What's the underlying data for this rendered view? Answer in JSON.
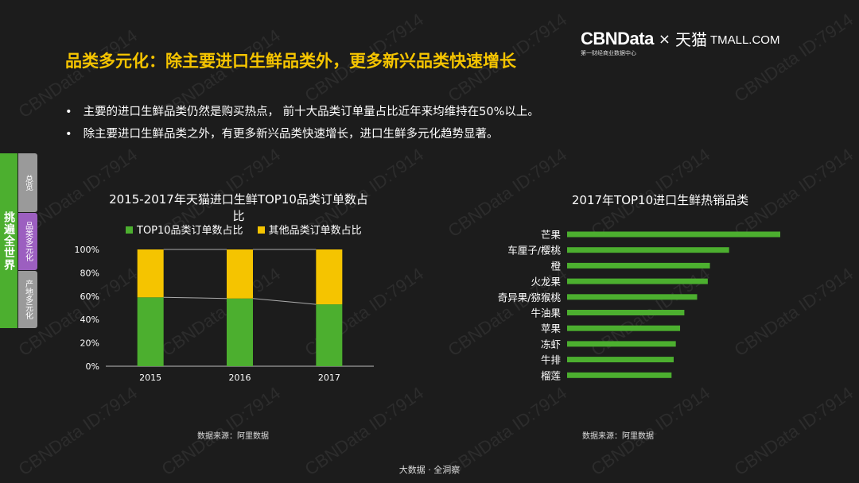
{
  "brand": {
    "main": "CBNData",
    "sub": "第一财经商业数据中心",
    "times": "×",
    "partner_cn": "天猫",
    "partner_en": "TMALL.COM"
  },
  "watermark": "CBNData ID:7914",
  "title": "品类多元化：除主要进口生鲜品类外，更多新兴品类快速增长",
  "bullets": [
    "主要的进口生鲜品类仍然是购买热点， 前十大品类订单量占比近年来均维持在50%以上。",
    "除主要进口生鲜品类之外，有更多新兴品类快速增长，进口生鲜多元化趋势显著。"
  ],
  "sidenav": {
    "main": "挑遍全世界",
    "items": [
      "总览",
      "品类多元化",
      "产地多元化"
    ]
  },
  "colors": {
    "green": "#4caf2f",
    "yellow": "#f5c400",
    "title": "#f5c400",
    "nav_grey": "#9a9a9a",
    "nav_purple": "#9c5fc0"
  },
  "chart_data": [
    {
      "type": "bar",
      "stacked": true,
      "title": "2015-2017年天猫进口生鲜TOP10品类订单数占比",
      "categories": [
        "2015",
        "2016",
        "2017"
      ],
      "series": [
        {
          "name": "TOP10品类订单数占比",
          "values": [
            59,
            58,
            53
          ]
        },
        {
          "name": "其他品类订单数占比",
          "values": [
            41,
            42,
            47
          ]
        }
      ],
      "ylim": [
        0,
        100
      ],
      "yticks": [
        "0%",
        "20%",
        "40%",
        "60%",
        "80%",
        "100%"
      ],
      "yticks_values": [
        0,
        20,
        40,
        60,
        80,
        100
      ],
      "source": "数据来源：阿里数据"
    },
    {
      "type": "bar",
      "orientation": "horizontal",
      "title": "2017年TOP10进口生鲜热销品类",
      "categories": [
        "芒果",
        "车厘子/樱桃",
        "橙",
        "火龙果",
        "奇异果/猕猴桃",
        "牛油果",
        "苹果",
        "冻虾",
        "牛排",
        "榴莲"
      ],
      "values": [
        100,
        76,
        67,
        66,
        61,
        55,
        53,
        51,
        50,
        49
      ],
      "source": "数据来源：阿里数据"
    }
  ],
  "footer": "大数据 · 全洞察"
}
